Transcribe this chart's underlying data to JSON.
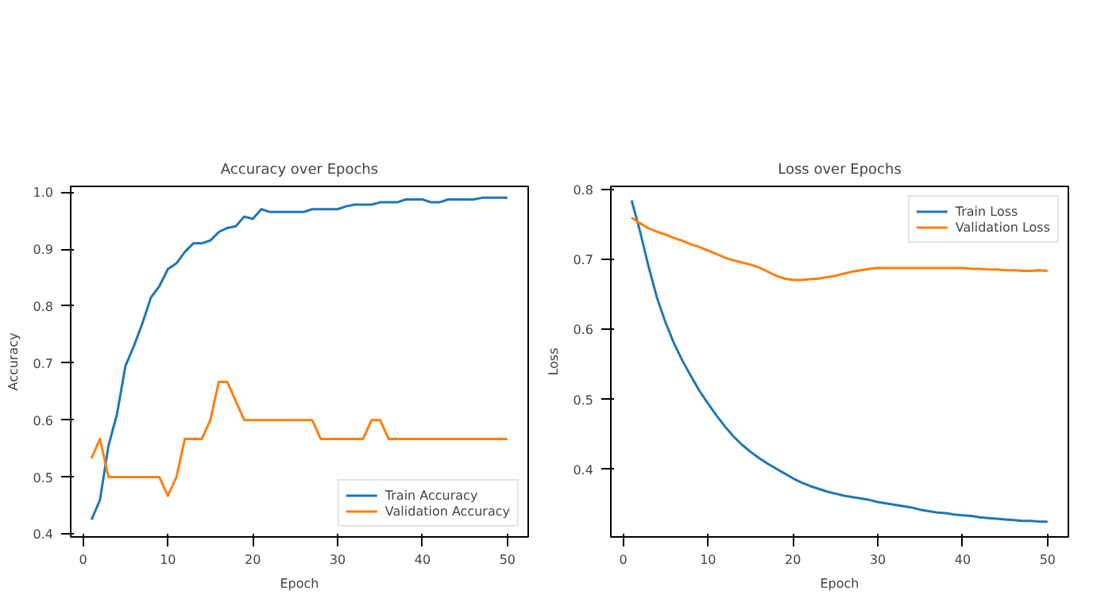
{
  "chart_data": [
    {
      "type": "line",
      "title": "Accuracy over Epochs",
      "xlabel": "Epoch",
      "ylabel": "Accuracy",
      "x": [
        1,
        2,
        3,
        4,
        5,
        6,
        7,
        8,
        9,
        10,
        11,
        12,
        13,
        14,
        15,
        16,
        17,
        18,
        19,
        20,
        21,
        22,
        23,
        24,
        25,
        26,
        27,
        28,
        29,
        30,
        31,
        32,
        33,
        34,
        35,
        36,
        37,
        38,
        39,
        40,
        41,
        42,
        43,
        44,
        45,
        46,
        47,
        48,
        49,
        50
      ],
      "xlim": [
        -1.45,
        52.45
      ],
      "ylim": [
        0.395,
        1.01
      ],
      "xticks": [
        0,
        10,
        20,
        30,
        40,
        50
      ],
      "yticks": [
        0.4,
        0.5,
        0.6,
        0.7,
        0.8,
        0.9,
        {
          "value": 1,
          "label": "1.0"
        }
      ],
      "grid": false,
      "legend": "bottom right",
      "series": [
        {
          "name": "Train Accuracy",
          "color": "#1f77b4",
          "values": [
            0.425,
            0.46,
            0.555,
            0.61,
            0.695,
            0.73,
            0.77,
            0.815,
            0.835,
            0.865,
            0.875,
            0.895,
            0.91,
            0.91,
            0.915,
            0.93,
            0.937,
            0.94,
            0.957,
            0.953,
            0.97,
            0.965,
            0.965,
            0.965,
            0.965,
            0.965,
            0.97,
            0.97,
            0.97,
            0.97,
            0.975,
            0.978,
            0.978,
            0.978,
            0.982,
            0.982,
            0.982,
            0.987,
            0.987,
            0.987,
            0.982,
            0.982,
            0.987,
            0.987,
            0.987,
            0.987,
            0.99,
            0.99,
            0.99,
            0.99
          ]
        },
        {
          "name": "Validation Accuracy",
          "color": "#ff7f0e",
          "values": [
            0.533,
            0.567,
            0.5,
            0.5,
            0.5,
            0.5,
            0.5,
            0.5,
            0.5,
            0.467,
            0.5,
            0.567,
            0.567,
            0.567,
            0.6,
            0.667,
            0.667,
            0.633,
            0.6,
            0.6,
            0.6,
            0.6,
            0.6,
            0.6,
            0.6,
            0.6,
            0.6,
            0.567,
            0.567,
            0.567,
            0.567,
            0.567,
            0.567,
            0.6,
            0.6,
            0.567,
            0.567,
            0.567,
            0.567,
            0.567,
            0.567,
            0.567,
            0.567,
            0.567,
            0.567,
            0.567,
            0.567,
            0.567,
            0.567,
            0.567
          ]
        }
      ]
    },
    {
      "type": "line",
      "title": "Loss over Epochs",
      "xlabel": "Epoch",
      "ylabel": "Loss",
      "x": [
        1,
        2,
        3,
        4,
        5,
        6,
        7,
        8,
        9,
        10,
        11,
        12,
        13,
        14,
        15,
        16,
        17,
        18,
        19,
        20,
        21,
        22,
        23,
        24,
        25,
        26,
        27,
        28,
        29,
        30,
        31,
        32,
        33,
        34,
        35,
        36,
        37,
        38,
        39,
        40,
        41,
        42,
        43,
        44,
        45,
        46,
        47,
        48,
        49,
        50
      ],
      "xlim": [
        -1.45,
        52.45
      ],
      "ylim": [
        0.303,
        0.805
      ],
      "xticks": [
        0,
        10,
        20,
        30,
        40,
        50
      ],
      "yticks": [
        0.4,
        0.5,
        0.6,
        0.7,
        0.8
      ],
      "grid": false,
      "legend": "top right",
      "series": [
        {
          "name": "Train Loss",
          "color": "#1f77b4",
          "values": [
            0.785,
            0.74,
            0.69,
            0.645,
            0.61,
            0.58,
            0.555,
            0.533,
            0.512,
            0.494,
            0.477,
            0.461,
            0.447,
            0.435,
            0.425,
            0.416,
            0.408,
            0.401,
            0.394,
            0.387,
            0.381,
            0.376,
            0.372,
            0.368,
            0.365,
            0.362,
            0.36,
            0.358,
            0.356,
            0.353,
            0.351,
            0.349,
            0.347,
            0.345,
            0.342,
            0.34,
            0.338,
            0.337,
            0.335,
            0.334,
            0.333,
            0.331,
            0.33,
            0.329,
            0.328,
            0.327,
            0.326,
            0.326,
            0.325,
            0.325
          ]
        },
        {
          "name": "Validation Loss",
          "color": "#ff7f0e",
          "values": [
            0.76,
            0.752,
            0.745,
            0.74,
            0.736,
            0.731,
            0.727,
            0.722,
            0.718,
            0.713,
            0.708,
            0.703,
            0.699,
            0.696,
            0.693,
            0.689,
            0.683,
            0.677,
            0.673,
            0.671,
            0.671,
            0.672,
            0.673,
            0.675,
            0.677,
            0.68,
            0.683,
            0.685,
            0.687,
            0.688,
            0.688,
            0.688,
            0.688,
            0.688,
            0.688,
            0.688,
            0.688,
            0.688,
            0.688,
            0.688,
            0.687,
            0.687,
            0.686,
            0.686,
            0.685,
            0.685,
            0.684,
            0.684,
            0.685,
            0.684
          ]
        }
      ]
    }
  ]
}
